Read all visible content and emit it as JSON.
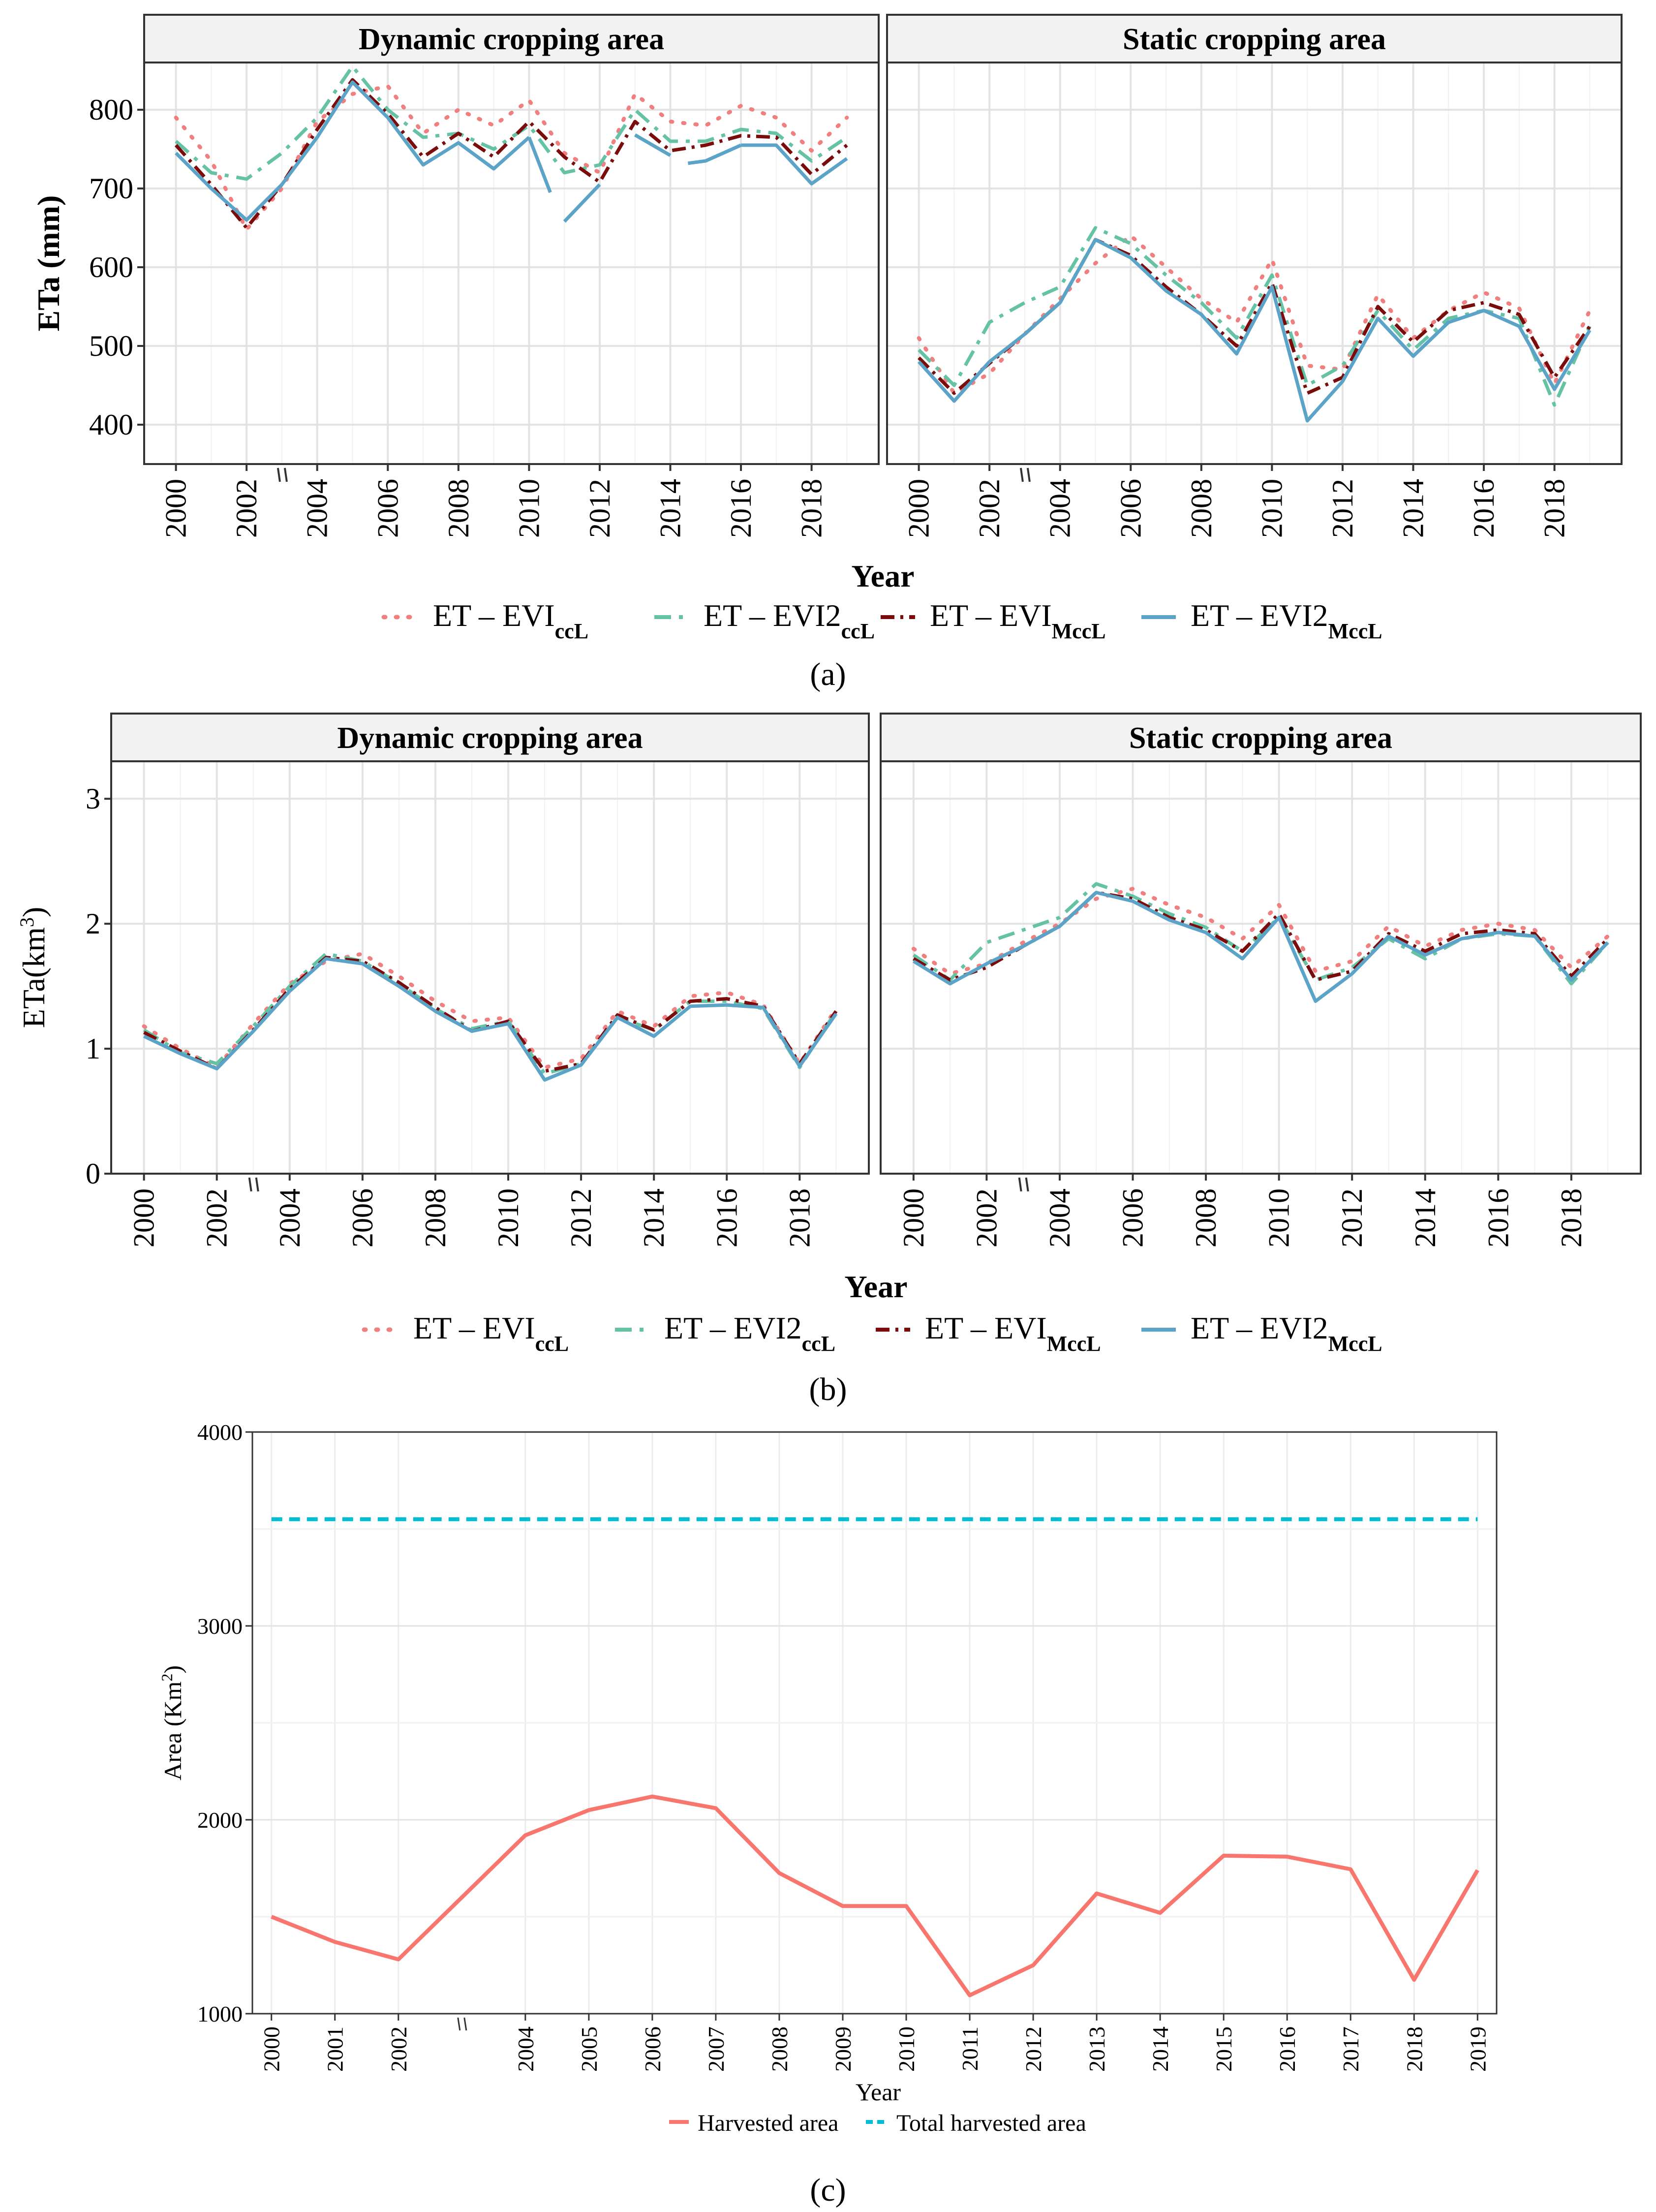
{
  "figure_labels": {
    "a": "(a)",
    "b": "(b)",
    "c": "(c)"
  },
  "colors": {
    "evi_ccl": "#F08080",
    "evi2_ccl": "#66C2A5",
    "evi_mccl": "#7B0C0C",
    "evi2_mccl": "#5BA4C8",
    "harvested": "#F8766D",
    "total": "#00BCD4",
    "strip": "#f2f2f2",
    "grid": "#e6e6e6"
  },
  "chart_data": [
    {
      "id": "a",
      "type": "line",
      "ylabel": "ETa (mm)",
      "xlabel": "Year",
      "ylim": [
        350,
        860
      ],
      "yticks": [
        400,
        500,
        600,
        700,
        800
      ],
      "xticks": [
        "2000",
        "2002",
        "2004",
        "2006",
        "2008",
        "2010",
        "2012",
        "2014",
        "2016",
        "2018"
      ],
      "legend_prefix": "ET – ",
      "legend": [
        {
          "name": "ET – EVIccL",
          "base": "EVI",
          "sub": "ccL"
        },
        {
          "name": "ET – EVI2ccL",
          "base": "EVI2",
          "sub": "ccL"
        },
        {
          "name": "ET – EVIMccL",
          "base": "EVI",
          "sub": "MccL"
        },
        {
          "name": "ET – EVI2MccL",
          "base": "EVI2",
          "sub": "MccL"
        }
      ],
      "panels": [
        {
          "title": "Dynamic cropping area",
          "x": [
            2000,
            2001,
            2002,
            2003,
            2004,
            2005,
            2006,
            2007,
            2008,
            2009,
            2010,
            2011,
            2012,
            2013,
            2014,
            2015,
            2016,
            2017,
            2018,
            2019
          ],
          "series": [
            {
              "name": "ET – EVIccL",
              "values": [
                790,
                735,
                648,
                700,
                785,
                820,
                830,
                770,
                800,
                780,
                812,
                745,
                720,
                820,
                785,
                780,
                805,
                790,
                748,
                790
              ]
            },
            {
              "name": "ET – EVI2ccL",
              "values": [
                760,
                720,
                712,
                745,
                790,
                855,
                800,
                765,
                770,
                750,
                780,
                720,
                730,
                800,
                760,
                760,
                775,
                770,
                735,
                765
              ]
            },
            {
              "name": "ET – EVIMccL",
              "values": [
                755,
                705,
                650,
                705,
                775,
                838,
                795,
                740,
                770,
                740,
                785,
                740,
                708,
                785,
                748,
                755,
                767,
                765,
                718,
                755
              ]
            },
            {
              "name": "ET – EVI2MccL",
              "values": [
                745,
                700,
                660,
                705,
                765,
                835,
                790,
                730,
                758,
                725,
                765,
                null,
                null,
                768,
                742,
                null,
                755,
                755,
                706,
                738
              ]
            }
          ],
          "segments_extra": [
            {
              "name": "ET – EVI2MccL",
              "points": [
                [
                  2010,
                  765
                ],
                [
                  2010.6,
                  695
                ]
              ]
            },
            {
              "name": "ET – EVI2MccL",
              "points": [
                [
                  2011,
                  658
                ],
                [
                  2012,
                  705
                ]
              ]
            },
            {
              "name": "ET – EVI2MccL",
              "points": [
                [
                  2014.5,
                  732
                ],
                [
                  2015,
                  735
                ],
                [
                  2016,
                  755
                ]
              ]
            }
          ]
        },
        {
          "title": "Static cropping area",
          "x": [
            2000,
            2001,
            2002,
            2003,
            2004,
            2005,
            2006,
            2007,
            2008,
            2009,
            2010,
            2011,
            2012,
            2013,
            2014,
            2015,
            2016,
            2017,
            2018,
            2019
          ],
          "series": [
            {
              "name": "ET – EVIccL",
              "values": [
                510,
                440,
                465,
                515,
                560,
                605,
                640,
                600,
                560,
                530,
                610,
                475,
                470,
                565,
                510,
                545,
                568,
                548,
                452,
                545
              ]
            },
            {
              "name": "ET – EVI2ccL",
              "values": [
                495,
                450,
                530,
                555,
                575,
                650,
                630,
                590,
                555,
                510,
                590,
                450,
                475,
                545,
                495,
                535,
                545,
                535,
                425,
                525
              ]
            },
            {
              "name": "ET – EVIMccL",
              "values": [
                485,
                440,
                478,
                515,
                555,
                635,
                615,
                575,
                540,
                500,
                580,
                440,
                460,
                550,
                505,
                545,
                555,
                540,
                460,
                525
              ]
            },
            {
              "name": "ET – EVI2MccL",
              "values": [
                480,
                430,
                480,
                515,
                555,
                635,
                612,
                570,
                540,
                490,
                575,
                405,
                455,
                535,
                487,
                530,
                545,
                525,
                445,
                520
              ]
            }
          ]
        }
      ]
    },
    {
      "id": "b",
      "type": "line",
      "ylabel": "ETa",
      "ylabel_unit": "(km",
      "ylabel_sup": "3",
      "ylabel_close": ")",
      "xlabel": "Year",
      "ylim": [
        0,
        3.3
      ],
      "yticks": [
        0,
        1,
        2,
        3
      ],
      "xticks": [
        "2000",
        "2002",
        "2004",
        "2006",
        "2008",
        "2010",
        "2012",
        "2014",
        "2016",
        "2018"
      ],
      "panels": [
        {
          "title": "Dynamic cropping area",
          "x": [
            2000,
            2001,
            2002,
            2003,
            2004,
            2005,
            2006,
            2007,
            2008,
            2009,
            2010,
            2011,
            2012,
            2013,
            2014,
            2015,
            2016,
            2017,
            2018,
            2019
          ],
          "series": [
            {
              "name": "ET – EVIccL",
              "values": [
                1.18,
                1.0,
                0.85,
                1.2,
                1.52,
                1.7,
                1.76,
                1.58,
                1.38,
                1.22,
                1.25,
                0.85,
                0.92,
                1.3,
                1.18,
                1.42,
                1.45,
                1.35,
                0.88,
                1.32
              ]
            },
            {
              "name": "ET – EVI2ccL",
              "values": [
                1.15,
                0.97,
                0.88,
                1.18,
                1.5,
                1.76,
                1.7,
                1.52,
                1.32,
                1.16,
                1.22,
                0.8,
                0.88,
                1.25,
                1.15,
                1.38,
                1.38,
                1.32,
                0.85,
                1.3
              ]
            },
            {
              "name": "ET – EVIMccL",
              "values": [
                1.13,
                0.98,
                0.84,
                1.15,
                1.48,
                1.73,
                1.7,
                1.53,
                1.33,
                1.14,
                1.22,
                0.82,
                0.88,
                1.27,
                1.15,
                1.38,
                1.4,
                1.34,
                0.88,
                1.3
              ]
            },
            {
              "name": "ET – EVI2MccL",
              "values": [
                1.1,
                0.96,
                0.84,
                1.14,
                1.46,
                1.72,
                1.68,
                1.5,
                1.3,
                1.14,
                1.2,
                0.75,
                0.87,
                1.25,
                1.1,
                1.34,
                1.35,
                1.33,
                0.86,
                1.28
              ]
            }
          ]
        },
        {
          "title": "Static cropping area",
          "x": [
            2000,
            2001,
            2002,
            2003,
            2004,
            2005,
            2006,
            2007,
            2008,
            2009,
            2010,
            2011,
            2012,
            2013,
            2014,
            2015,
            2016,
            2017,
            2018,
            2019
          ],
          "series": [
            {
              "name": "ET – EVIccL",
              "values": [
                1.8,
                1.6,
                1.68,
                1.85,
                2.0,
                2.2,
                2.28,
                2.15,
                2.05,
                1.88,
                2.15,
                1.62,
                1.7,
                1.98,
                1.82,
                1.95,
                2.0,
                1.95,
                1.65,
                1.9
              ]
            },
            {
              "name": "ET – EVI2ccL",
              "values": [
                1.75,
                1.55,
                1.85,
                1.95,
                2.05,
                2.32,
                2.22,
                2.08,
                1.97,
                1.78,
                2.05,
                1.55,
                1.65,
                1.88,
                1.72,
                1.88,
                1.92,
                1.9,
                1.52,
                1.85
              ]
            },
            {
              "name": "ET – EVIMccL",
              "values": [
                1.72,
                1.55,
                1.65,
                1.82,
                1.98,
                2.25,
                2.2,
                2.05,
                1.95,
                1.78,
                2.08,
                1.55,
                1.62,
                1.92,
                1.78,
                1.92,
                1.95,
                1.92,
                1.58,
                1.88
              ]
            },
            {
              "name": "ET – EVI2MccL",
              "values": [
                1.7,
                1.52,
                1.68,
                1.82,
                1.98,
                2.25,
                2.18,
                2.03,
                1.93,
                1.72,
                2.05,
                1.38,
                1.6,
                1.9,
                1.75,
                1.88,
                1.93,
                1.9,
                1.55,
                1.85
              ]
            }
          ]
        }
      ]
    },
    {
      "id": "c",
      "type": "line",
      "xlabel": "Year",
      "ylabel": "Area (Km",
      "ylabel_sup": "2",
      "ylabel_close": ")",
      "ylim": [
        1000,
        4000
      ],
      "yticks": [
        1000,
        2000,
        3000,
        4000
      ],
      "xticks": [
        "2000",
        "2001",
        "2002",
        "2004",
        "2005",
        "2006",
        "2007",
        "2008",
        "2009",
        "2010",
        "2011",
        "2012",
        "2013",
        "2014",
        "2015",
        "2016",
        "2017",
        "2018",
        "2019"
      ],
      "x": [
        2000,
        2001,
        2002,
        2003,
        2004,
        2005,
        2006,
        2007,
        2008,
        2009,
        2010,
        2011,
        2012,
        2013,
        2014,
        2015,
        2016,
        2017,
        2018,
        2019
      ],
      "series": [
        {
          "name": "Harvested area",
          "values": [
            1500,
            1370,
            1280,
            1600,
            1920,
            2050,
            2120,
            2060,
            1725,
            1555,
            1555,
            1095,
            1250,
            1620,
            1520,
            1815,
            1810,
            1745,
            1175,
            1740
          ]
        },
        {
          "name": "Total harvested area",
          "values": [
            3550,
            3550,
            3550,
            3550,
            3550,
            3550,
            3550,
            3550,
            3550,
            3550,
            3550,
            3550,
            3550,
            3550,
            3550,
            3550,
            3550,
            3550,
            3550,
            3550
          ]
        }
      ]
    }
  ]
}
